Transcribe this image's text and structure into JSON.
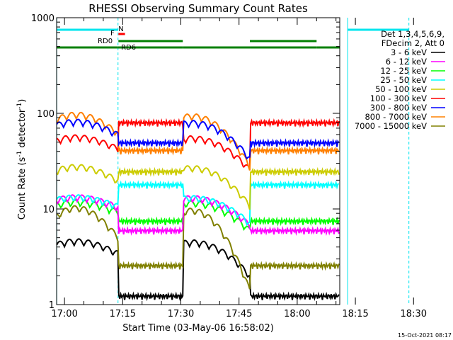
{
  "chart_data": {
    "type": "line",
    "title": "RHESSI Observing Summary Count Rates",
    "xlabel": "Start Time (03-May-06 16:58:02)",
    "ylabel_main": "Count Rate (s",
    "ylabel_sup1": "-1",
    "ylabel_mid": " detector",
    "ylabel_sup2": "-1",
    "ylabel_end": ")",
    "y_scale": "log",
    "ylim": [
      1,
      1000
    ],
    "xlim_min": [
      -2.03,
      70.97
    ],
    "x_ticks": [
      {
        "t": 0,
        "label": "17:00"
      },
      {
        "t": 15,
        "label": "17:15"
      },
      {
        "t": 30,
        "label": "17:30"
      },
      {
        "t": 45,
        "label": "17:45"
      },
      {
        "t": 60,
        "label": "18:00"
      },
      {
        "t": 75,
        "label": "18:15"
      },
      {
        "t": 90,
        "label": "18:30"
      }
    ],
    "y_ticks": [
      {
        "v": 1,
        "label": "1"
      },
      {
        "v": 10,
        "label": "10"
      },
      {
        "v": 100,
        "label": "100"
      },
      {
        "v": 1000,
        "label": "1000"
      }
    ],
    "legend_header": [
      "Det 1,3,4,5,6,9,",
      "FDecim 2, Att 0"
    ],
    "legend_position": "right",
    "series": [
      {
        "name": "3 - 6 keV",
        "color": "#000000"
      },
      {
        "name": "6 - 12 keV",
        "color": "#ff00ff"
      },
      {
        "name": "12 - 25 keV",
        "color": "#00ff00"
      },
      {
        "name": "25 - 50 keV",
        "color": "#00ffff"
      },
      {
        "name": "50 - 100 keV",
        "color": "#cccc00"
      },
      {
        "name": "100 - 300 keV",
        "color": "#ff0000"
      },
      {
        "name": "300 - 800 keV",
        "color": "#0000ff"
      },
      {
        "name": "800 - 7000 keV",
        "color": "#ff8000"
      },
      {
        "name": "7000 - 15000 keV",
        "color": "#808000"
      }
    ],
    "flags": [
      {
        "label": "N",
        "color": "#00e5ee"
      },
      {
        "label": "F",
        "color": "#ff0000"
      },
      {
        "label": "RD0",
        "color": "#008000"
      },
      {
        "label": "RD6",
        "color": "#008000"
      }
    ],
    "night_boundaries_min": [
      -2.0,
      13.8,
      73.0,
      88.8
    ],
    "saa_boundaries_min": [],
    "timestamp": "15-Oct-2021 08:17"
  }
}
